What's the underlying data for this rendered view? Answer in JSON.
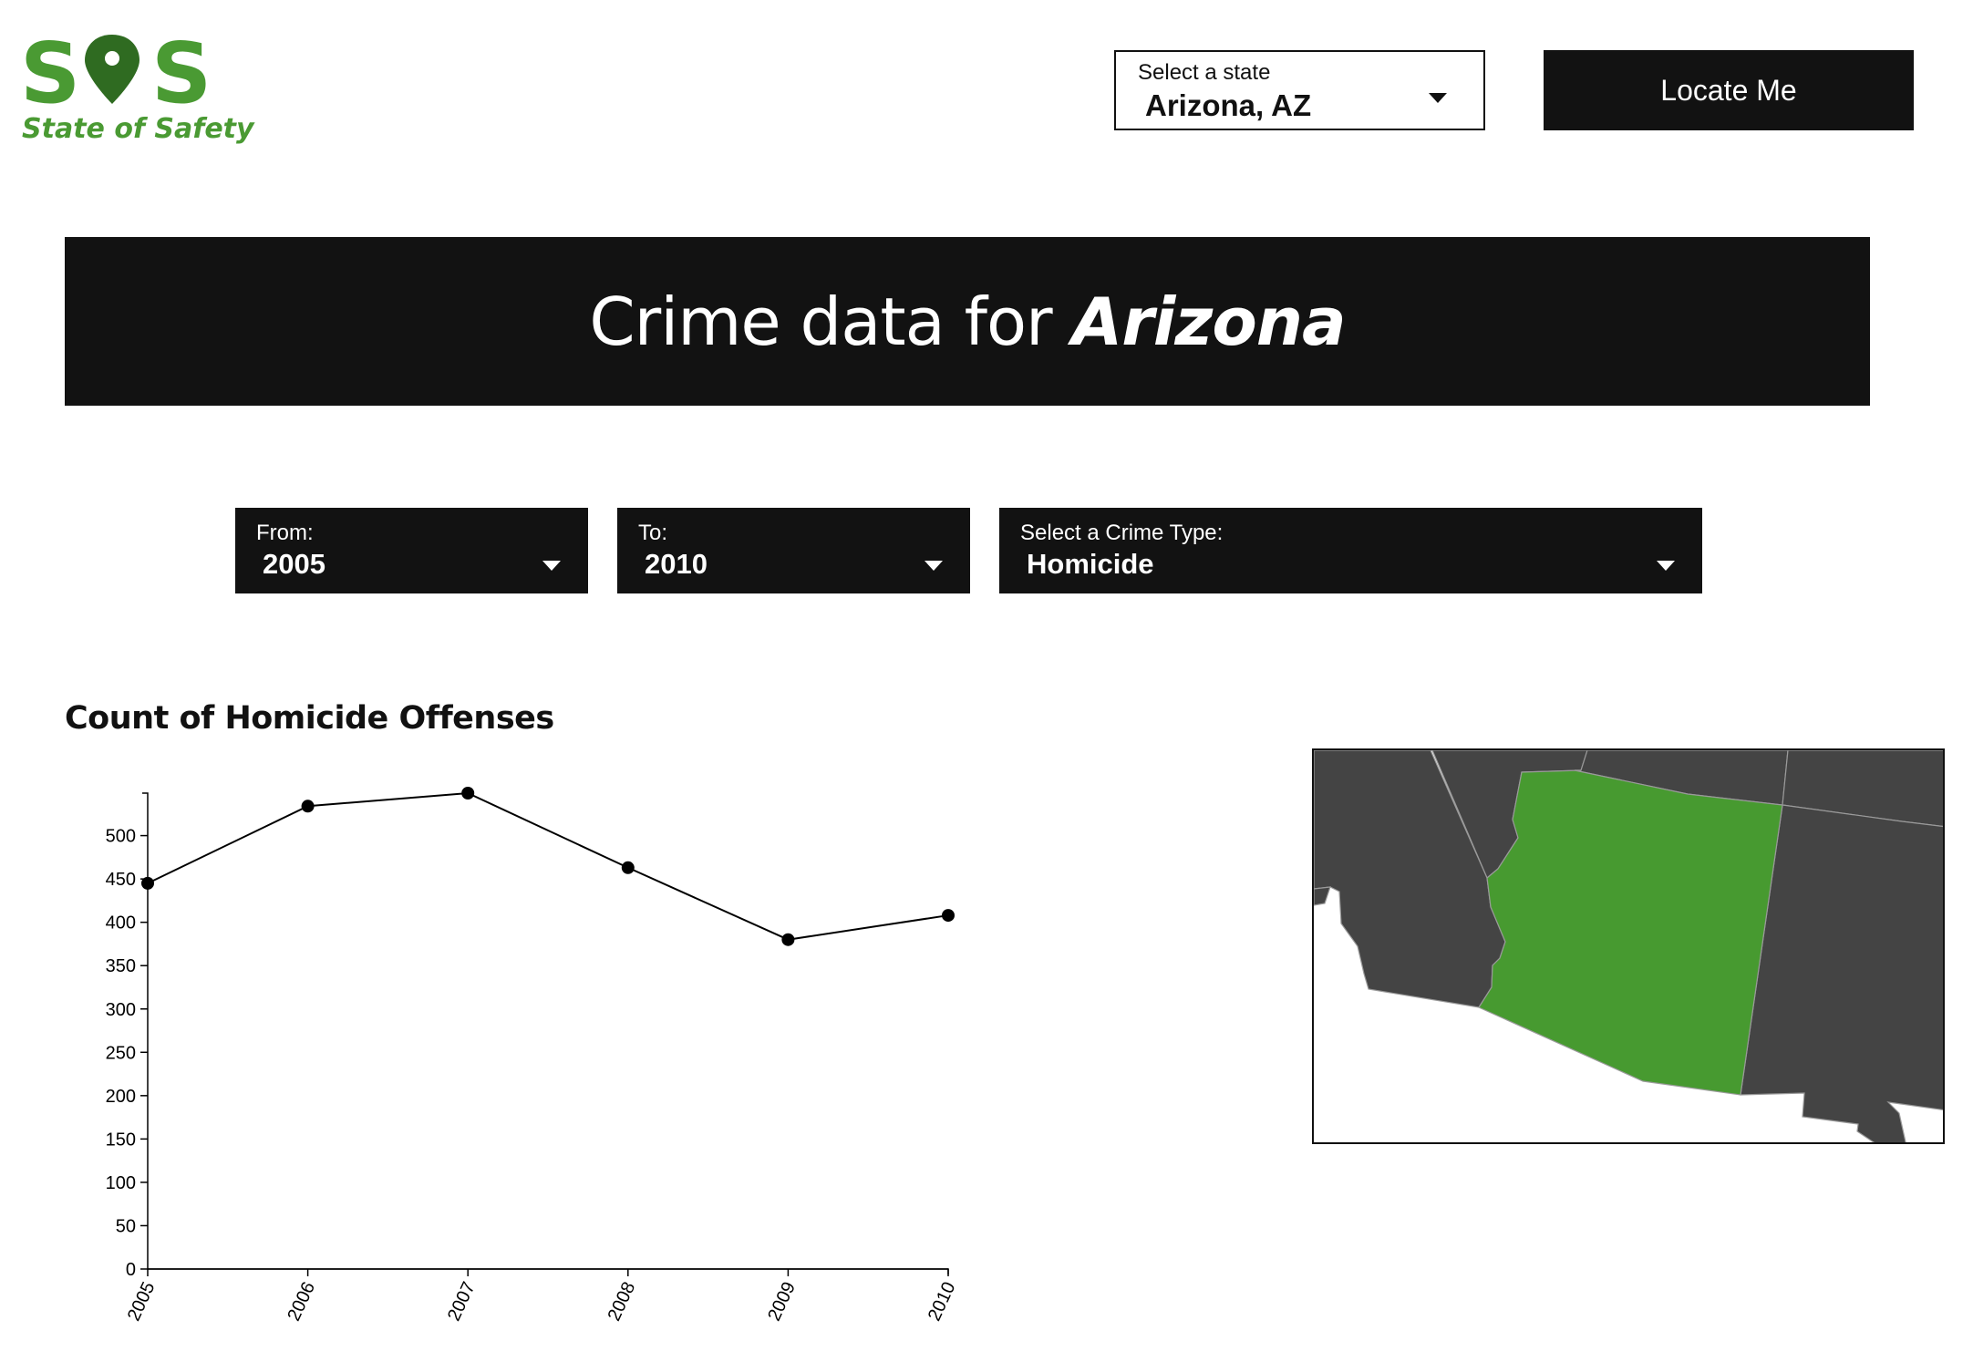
{
  "brand": {
    "logo_text": "SOS",
    "tagline": "State of Safety",
    "colors": {
      "green": "#4a9a33",
      "dark_green": "#2f6b21"
    }
  },
  "header": {
    "state_select": {
      "label": "Select a state",
      "value": "Arizona, AZ"
    },
    "locate_button": "Locate Me"
  },
  "banner": {
    "prefix": "Crime data for",
    "state": "Arizona"
  },
  "filters": {
    "from": {
      "label": "From:",
      "value": "2005"
    },
    "to": {
      "label": "To:",
      "value": "2010"
    },
    "crime_type": {
      "label": "Select a Crime Type:",
      "value": "Homicide"
    }
  },
  "chart_data": {
    "type": "line",
    "title": "Count of Homicide Offenses",
    "xlabel": "",
    "ylabel": "",
    "x": [
      "2005",
      "2006",
      "2007",
      "2008",
      "2009",
      "2010"
    ],
    "values": [
      445,
      534,
      549,
      463,
      380,
      408
    ],
    "ylim": [
      0,
      549
    ],
    "yticks": [
      0,
      50,
      100,
      150,
      200,
      250,
      300,
      350,
      400,
      450,
      500
    ],
    "grid": false,
    "legend": "none",
    "color": "#000000"
  },
  "map": {
    "highlighted_state": "Arizona",
    "highlight_color": "#479a30",
    "other_states_color": "#444444",
    "border_color": "#9a9a9a"
  }
}
